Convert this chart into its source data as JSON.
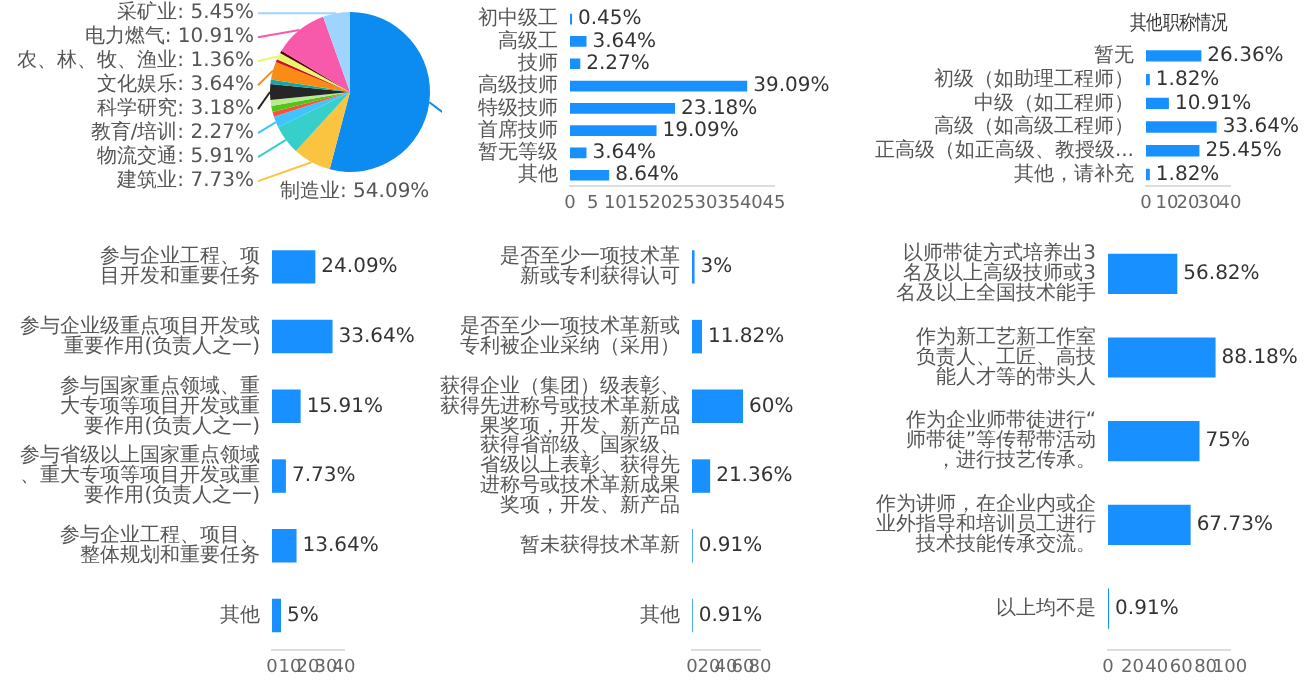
{
  "chart_data": [
    {
      "type": "pie",
      "categories": [
        "制造业",
        "建筑业",
        "物流交通",
        "教育/培训",
        null,
        null,
        null,
        "科学研究",
        null,
        "文化娱乐",
        null,
        "农、林、牧、渔业",
        null,
        "电力燃气",
        "采矿业"
      ],
      "values": [
        54.09,
        7.73,
        5.91,
        2.27,
        1.0,
        1.2,
        1.2,
        3.18,
        0.9,
        3.64,
        0.6,
        1.36,
        0.56,
        10.91,
        5.45
      ],
      "colors": [
        "#0c8cf0",
        "#fac441",
        "#36cfc9",
        "#40c4ff",
        "#f5533d",
        "#52c41a",
        "#b7eb8f",
        "#262626",
        "#13a8a8",
        "#fa8c16",
        "#cf1322",
        "#e6f76a",
        "#5c0011",
        "#f759ab",
        "#9fd4ff"
      ],
      "value_labels": [
        ": 54.09%",
        ": 7.73%",
        ": 5.91%",
        ": 2.27%",
        null,
        null,
        null,
        ": 3.18%",
        null,
        ": 3.64%",
        null,
        ": 1.36%",
        null,
        ": 10.91%",
        ": 5.45%"
      ]
    },
    {
      "type": "bar",
      "orientation": "horizontal",
      "categories": [
        "初中级工",
        "高级工",
        "技师",
        "高级技师",
        "特级技师",
        "首席技师",
        "暂无等级",
        "其他"
      ],
      "values": [
        0.45,
        3.64,
        2.27,
        39.09,
        23.18,
        19.09,
        3.64,
        8.64
      ],
      "color": "#1890ff",
      "value_labels": [
        "0.45%",
        "3.64%",
        "2.27%",
        "39.09%",
        "23.18%",
        "19.09%",
        "3.64%",
        "8.64%"
      ],
      "xlim": [
        0,
        45
      ],
      "xticks": [
        0,
        5,
        10,
        15,
        20,
        25,
        30,
        35,
        40,
        45
      ]
    },
    {
      "type": "bar",
      "orientation": "horizontal",
      "title": "其他职称情况",
      "categories": [
        "暂无",
        "初级（如助理工程师）",
        "中级（如工程师）",
        "高级（如高级工程师）",
        "正高级（如正高级、教授级...",
        "其他，请补充"
      ],
      "values": [
        26.36,
        1.82,
        10.91,
        33.64,
        25.45,
        1.82
      ],
      "color": "#1890ff",
      "value_labels": [
        "26.36%",
        "1.82%",
        "10.91%",
        "33.64%",
        "25.45%",
        "1.82%"
      ],
      "xlim": [
        0,
        40
      ],
      "xticks": [
        0,
        10,
        20,
        30,
        40
      ]
    },
    {
      "type": "bar",
      "orientation": "horizontal",
      "categories": [
        "参与企业工程、项目开发和重要任务",
        "参与企业级重点项目开发或重要作用(负责人之一)",
        "参与国家重点领域、重大专项等项目开发或重要作用(负责人之一)",
        "参与省级以上国家重点领域、重大专项等项目开发或重要作用(负责人之一)",
        "参与企业工程、项目、整体规划和重要任务",
        "其他"
      ],
      "values": [
        24.09,
        33.64,
        15.91,
        7.73,
        13.64,
        5
      ],
      "color": "#1890ff",
      "value_labels": [
        "24.09%",
        "33.64%",
        "15.91%",
        "7.73%",
        "13.64%",
        "5%"
      ],
      "xlim": [
        0,
        40
      ],
      "xticks": [
        0,
        10,
        20,
        30,
        40
      ]
    },
    {
      "type": "bar",
      "orientation": "horizontal",
      "categories": [
        "是否至少一项技术革新或专利获得认可",
        "是否至少一项技术革新或专利被企业采纳（采用）",
        "获得企业（集团）级表彰、获得先进称号或技术革新成果奖项，开发、新产品",
        "获得省部级、国家级、省级以上表彰、获得先进称号或技术革新成果奖项，开发、新产品",
        "暂未获得技术革新",
        "其他"
      ],
      "values": [
        3,
        11.82,
        60,
        21.36,
        0.91,
        0.91
      ],
      "color": "#1890ff",
      "value_labels": [
        "3%",
        "11.82%",
        "60%",
        "21.36%",
        "0.91%",
        "0.91%"
      ],
      "xlim": [
        0,
        80
      ],
      "xticks": [
        0,
        20,
        40,
        60,
        80
      ]
    },
    {
      "type": "bar",
      "orientation": "horizontal",
      "categories": [
        "以师带徒方式培养出3名及以上高级技师或3名及以上全国技术能手",
        "作为新工艺新工作室负责人、工匠、高技能人才等的带头人",
        "作为企业师带徒进行“师带徒”等传帮带活动，进行技艺传承。",
        "作为讲师，在企业内或企业外指导和培训员工进行技术技能传承交流。",
        "以上均不是"
      ],
      "values": [
        56.82,
        88.18,
        75,
        67.73,
        0.91
      ],
      "color": "#1890ff",
      "value_labels": [
        "56.82%",
        "88.18%",
        "75%",
        "67.73%",
        "0.91%"
      ],
      "xlim": [
        0,
        100
      ],
      "xticks": [
        0,
        20,
        40,
        60,
        80,
        100
      ]
    }
  ]
}
